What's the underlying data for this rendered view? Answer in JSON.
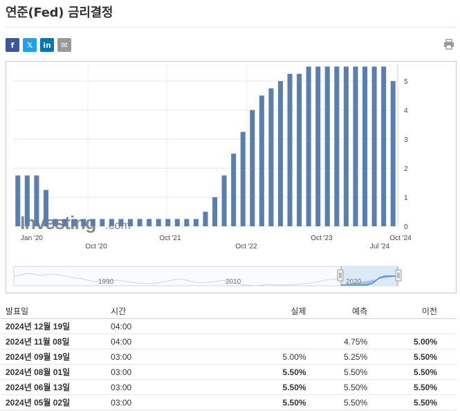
{
  "page": {
    "title": "연준(Fed) 금리결정"
  },
  "share": [
    {
      "name": "facebook-button",
      "glyph": "f",
      "color": "#3b5998"
    },
    {
      "name": "x-button",
      "glyph": "𝕏",
      "color": "#1da1f2"
    },
    {
      "name": "linkedin-button",
      "glyph": "in",
      "color": "#0077b5"
    },
    {
      "name": "email-button",
      "glyph": "✉",
      "color": "#9a9a9a"
    }
  ],
  "chart_data": {
    "type": "bar",
    "color": "#5b7fad",
    "watermark": {
      "main": "Investing",
      "domain": ".com"
    },
    "y_ticks": [
      "0",
      "1",
      "2",
      "3",
      "4",
      "5"
    ],
    "ylim": [
      0,
      5.6
    ],
    "x_labels": [
      {
        "text": "Jan '20",
        "row": 1
      },
      {
        "text": "Oct '20",
        "row": 2
      },
      {
        "text": "Oct '21",
        "row": 1
      },
      {
        "text": "Oct '22",
        "row": 2
      },
      {
        "text": "Oct '23",
        "row": 1
      },
      {
        "text": "Jul '24",
        "row": 2
      },
      {
        "text": "Oct '24",
        "row": 1
      }
    ],
    "values": [
      1.75,
      1.75,
      1.75,
      1.25,
      0.25,
      0.25,
      0.25,
      0.25,
      0.25,
      0.25,
      0.25,
      0.25,
      0.25,
      0.25,
      0.25,
      0.25,
      0.25,
      0.25,
      0.25,
      0.25,
      0.5,
      1.0,
      1.75,
      2.5,
      3.25,
      4.0,
      4.5,
      4.75,
      5.0,
      5.25,
      5.25,
      5.5,
      5.5,
      5.5,
      5.5,
      5.5,
      5.5,
      5.5,
      5.5,
      5.5,
      5.0
    ],
    "navigator": {
      "labels": [
        "1990",
        "2010",
        "2020"
      ]
    }
  },
  "table": {
    "headers": {
      "date": "발표일",
      "time": "시간",
      "actual": "실제",
      "forecast": "예측",
      "previous": "이전"
    },
    "rows": [
      {
        "date": "2024년 12월 19일",
        "time": "04:00",
        "actual": "",
        "forecast": "",
        "previous": ""
      },
      {
        "date": "2024년 11월 08일",
        "time": "04:00",
        "actual": "",
        "forecast": "4.75%",
        "previous": "5.00%"
      },
      {
        "date": "2024년 09월 19일",
        "time": "03:00",
        "actual": "5.00%",
        "forecast": "5.25%",
        "previous": "5.50%",
        "highlight": true
      },
      {
        "date": "2024년 08월 01일",
        "time": "03:00",
        "actual": "5.50%",
        "forecast": "5.50%",
        "previous": "5.50%"
      },
      {
        "date": "2024년 06월 13일",
        "time": "03:00",
        "actual": "5.50%",
        "forecast": "5.50%",
        "previous": "5.50%"
      },
      {
        "date": "2024년 05월 02일",
        "time": "03:00",
        "actual": "5.50%",
        "forecast": "5.50%",
        "previous": "5.50%"
      }
    ]
  }
}
